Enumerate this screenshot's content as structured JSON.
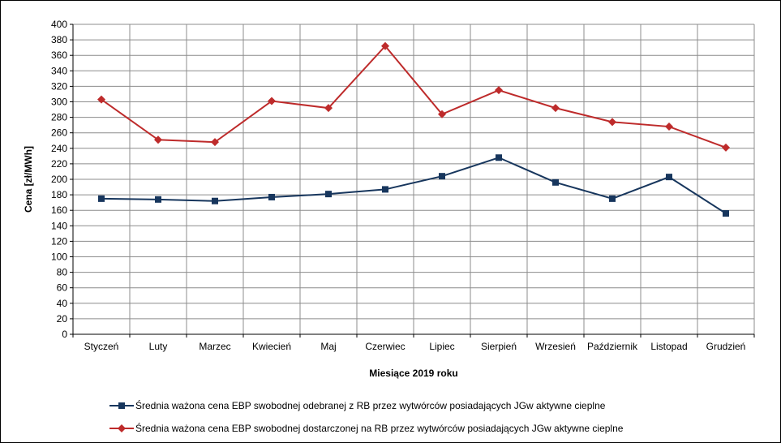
{
  "chart_data": {
    "type": "line",
    "categories": [
      "Styczeń",
      "Luty",
      "Marzec",
      "Kwiecień",
      "Maj",
      "Czerwiec",
      "Lipiec",
      "Sierpień",
      "Wrzesień",
      "Październik",
      "Listopad",
      "Grudzień"
    ],
    "series": [
      {
        "name": "Średnia ważona cena EBP swobodnej odebranej z RB przez wytwórców posiadających JGw aktywne cieplne",
        "color": "#17365D",
        "marker": "square",
        "values": [
          175,
          174,
          172,
          177,
          181,
          187,
          204,
          228,
          196,
          175,
          203,
          156
        ]
      },
      {
        "name": "Średnia ważona cena EBP swobodnej dostarczonej na RB przez wytwórców posiadających JGw aktywne cieplne",
        "color": "#BE2B2B",
        "marker": "diamond",
        "values": [
          303,
          251,
          248,
          301,
          292,
          372,
          284,
          315,
          292,
          274,
          268,
          241
        ]
      }
    ],
    "xlabel": "Miesiące 2019  roku",
    "ylabel": "Cena [zł/MWh]",
    "ylim": [
      0,
      400
    ],
    "ytick_step": 20,
    "grid": true,
    "legend_position": "bottom"
  }
}
